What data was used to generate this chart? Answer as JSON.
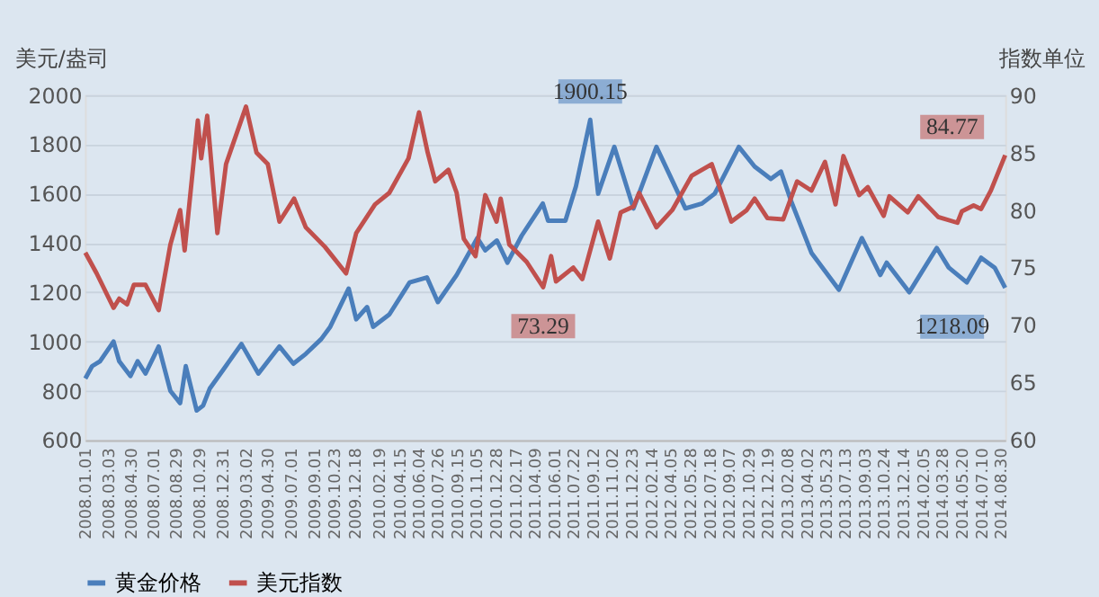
{
  "chart_data": {
    "type": "line",
    "ylabel": "美元/盎司",
    "y2label": "指数单位",
    "xlim": [
      "2008-01-01",
      "2014-09-12"
    ],
    "xticks": [
      {
        "value": "2008-01-01",
        "label": "2008.01.01"
      },
      {
        "value": "2008-03-03",
        "label": "2008.03.03"
      },
      {
        "value": "2008-04-30",
        "label": "2008.04.30"
      },
      {
        "value": "2008-07-01",
        "label": "2008.07.01"
      },
      {
        "value": "2008-08-29",
        "label": "2008.08.29"
      },
      {
        "value": "2008-10-29",
        "label": "2008.10.29"
      },
      {
        "value": "2008-12-31",
        "label": "2008.12.31"
      },
      {
        "value": "2009-03-02",
        "label": "2009.03.02"
      },
      {
        "value": "2009-04-30",
        "label": "2009.04.30"
      },
      {
        "value": "2009-07-01",
        "label": "2009.07.01"
      },
      {
        "value": "2009-09-01",
        "label": "2009.09.01"
      },
      {
        "value": "2009-10-23",
        "label": "2009.10.23"
      },
      {
        "value": "2009-12-18",
        "label": "2009.12.18"
      },
      {
        "value": "2010-02-19",
        "label": "2010.02.19"
      },
      {
        "value": "2010-04-15",
        "label": "2010.04.15"
      },
      {
        "value": "2010-06-04",
        "label": "2010.06.04"
      },
      {
        "value": "2010-07-26",
        "label": "2010.07.26"
      },
      {
        "value": "2010-09-15",
        "label": "2010.09.15"
      },
      {
        "value": "2010-11-05",
        "label": "2010.11.05"
      },
      {
        "value": "2010-12-28",
        "label": "2010.12.28"
      },
      {
        "value": "2011-02-17",
        "label": "2011.02.17"
      },
      {
        "value": "2011-04-09",
        "label": "2011.04.09"
      },
      {
        "value": "2011-06-01",
        "label": "2011.06.01"
      },
      {
        "value": "2011-07-22",
        "label": "2011.07.22"
      },
      {
        "value": "2011-09-12",
        "label": "2011.09.12"
      },
      {
        "value": "2011-11-02",
        "label": "2011.11.02"
      },
      {
        "value": "2011-12-23",
        "label": "2011.12.23"
      },
      {
        "value": "2012-02-14",
        "label": "2012.02.14"
      },
      {
        "value": "2012-04-05",
        "label": "2012.04.05"
      },
      {
        "value": "2012-05-28",
        "label": "2012.05.28"
      },
      {
        "value": "2012-07-18",
        "label": "2012.07.18"
      },
      {
        "value": "2012-09-07",
        "label": "2012.09.07"
      },
      {
        "value": "2012-10-29",
        "label": "2012.10.29"
      },
      {
        "value": "2012-12-19",
        "label": "2012.12.19"
      },
      {
        "value": "2013-02-08",
        "label": "2013.02.08"
      },
      {
        "value": "2013-04-02",
        "label": "2013.04.02"
      },
      {
        "value": "2013-05-23",
        "label": "2013.05.23"
      },
      {
        "value": "2013-07-13",
        "label": "2013.07.13"
      },
      {
        "value": "2013-09-03",
        "label": "2013.09.03"
      },
      {
        "value": "2013-10-24",
        "label": "2013.10.24"
      },
      {
        "value": "2013-12-14",
        "label": "2013.12.14"
      },
      {
        "value": "2014-02-05",
        "label": "2014.02.05"
      },
      {
        "value": "2014-03-28",
        "label": "2014.03.28"
      },
      {
        "value": "2014-05-20",
        "label": "2014.05.20"
      },
      {
        "value": "2014-07-10",
        "label": "2014.07.10"
      },
      {
        "value": "2014-08-30",
        "label": "2014.08.30"
      }
    ],
    "ylim": [
      600,
      2000
    ],
    "yticks": [
      600,
      800,
      1000,
      1200,
      1400,
      1600,
      1800,
      2000
    ],
    "y2lim": [
      60,
      90
    ],
    "y2ticks": [
      60,
      65,
      70,
      75,
      80,
      85,
      90
    ],
    "grid": "y",
    "legend": "bottom",
    "marker": "none",
    "line_style": "solid",
    "series": [
      {
        "name": "黄金价格",
        "color": "#4a7ebb",
        "x": [
          "2008-01-02",
          "2008-01-20",
          "2008-02-10",
          "2008-03-17",
          "2008-04-01",
          "2008-05-01",
          "2008-05-20",
          "2008-06-10",
          "2008-07-15",
          "2008-08-15",
          "2008-09-10",
          "2008-09-25",
          "2008-10-24",
          "2008-11-10",
          "2008-11-28",
          "2008-12-31",
          "2009-02-20",
          "2009-04-06",
          "2009-06-01",
          "2009-07-08",
          "2009-08-10",
          "2009-09-20",
          "2009-10-14",
          "2009-12-02",
          "2009-12-22",
          "2010-01-20",
          "2010-02-05",
          "2010-03-20",
          "2010-05-13",
          "2010-06-28",
          "2010-07-27",
          "2010-09-15",
          "2010-11-09",
          "2010-11-30",
          "2010-12-31",
          "2011-01-28",
          "2011-03-07",
          "2011-05-02",
          "2011-05-16",
          "2011-07-01",
          "2011-07-29",
          "2011-09-05",
          "2011-09-26",
          "2011-11-08",
          "2011-12-29",
          "2012-02-28",
          "2012-05-15",
          "2012-06-28",
          "2012-08-01",
          "2012-10-04",
          "2012-11-15",
          "2012-12-28",
          "2013-01-24",
          "2013-02-20",
          "2013-04-15",
          "2013-06-27",
          "2013-08-27",
          "2013-10-15",
          "2013-11-01",
          "2013-12-31",
          "2014-03-14",
          "2014-04-15",
          "2014-06-02",
          "2014-07-10",
          "2014-08-15",
          "2014-09-12"
        ],
        "values": [
          850,
          900,
          920,
          1000,
          920,
          860,
          920,
          870,
          980,
          800,
          750,
          900,
          720,
          740,
          810,
          880,
          990,
          870,
          980,
          910,
          950,
          1010,
          1060,
          1215,
          1090,
          1140,
          1060,
          1110,
          1240,
          1260,
          1160,
          1270,
          1420,
          1370,
          1410,
          1320,
          1430,
          1560,
          1490,
          1490,
          1630,
          1900.15,
          1600,
          1790,
          1540,
          1790,
          1540,
          1560,
          1600,
          1790,
          1710,
          1660,
          1690,
          1570,
          1360,
          1210,
          1420,
          1270,
          1320,
          1200,
          1380,
          1300,
          1240,
          1340,
          1300,
          1218.09
        ],
        "value_labels": [
          null,
          null,
          null,
          null,
          null,
          null,
          null,
          null,
          null,
          null,
          null,
          null,
          null,
          null,
          null,
          null,
          null,
          null,
          null,
          null,
          null,
          null,
          null,
          null,
          null,
          null,
          null,
          null,
          null,
          null,
          null,
          null,
          null,
          null,
          null,
          null,
          null,
          null,
          null,
          null,
          null,
          "1900.15",
          null,
          null,
          null,
          null,
          null,
          null,
          null,
          null,
          null,
          null,
          null,
          null,
          null,
          null,
          null,
          null,
          null,
          null,
          null,
          null,
          null,
          null,
          null,
          "1218.09"
        ]
      },
      {
        "name": "美元指数",
        "color": "#c0504d",
        "axis": "y2",
        "x": [
          "2008-01-02",
          "2008-02-01",
          "2008-03-17",
          "2008-04-01",
          "2008-04-22",
          "2008-05-10",
          "2008-06-10",
          "2008-07-15",
          "2008-08-15",
          "2008-09-10",
          "2008-09-22",
          "2008-10-27",
          "2008-11-05",
          "2008-11-21",
          "2008-12-18",
          "2009-01-10",
          "2009-03-04",
          "2009-04-01",
          "2009-05-01",
          "2009-06-01",
          "2009-07-10",
          "2009-08-10",
          "2009-09-30",
          "2009-11-25",
          "2009-12-22",
          "2010-02-10",
          "2010-03-20",
          "2010-05-10",
          "2010-06-07",
          "2010-06-30",
          "2010-07-20",
          "2010-08-24",
          "2010-09-15",
          "2010-10-04",
          "2010-11-04",
          "2010-11-30",
          "2010-12-30",
          "2011-01-10",
          "2011-02-02",
          "2011-03-20",
          "2011-05-03",
          "2011-05-24",
          "2011-06-06",
          "2011-07-22",
          "2011-08-15",
          "2011-09-26",
          "2011-10-27",
          "2011-11-25",
          "2011-12-29",
          "2012-01-13",
          "2012-02-28",
          "2012-04-10",
          "2012-06-01",
          "2012-07-24",
          "2012-09-14",
          "2012-10-25",
          "2012-11-15",
          "2012-12-19",
          "2013-01-30",
          "2013-03-08",
          "2013-04-15",
          "2013-05-21",
          "2013-06-18",
          "2013-07-09",
          "2013-08-20",
          "2013-09-12",
          "2013-10-24",
          "2013-11-08",
          "2013-12-27",
          "2014-01-24",
          "2014-03-18",
          "2014-05-08",
          "2014-05-20",
          "2014-06-20",
          "2014-07-10",
          "2014-08-05",
          "2014-09-12"
        ],
        "values": [
          76.3,
          74.5,
          71.5,
          72.3,
          71.8,
          73.5,
          73.5,
          71.3,
          77,
          80,
          76.5,
          87.8,
          84.5,
          88.2,
          78,
          84,
          89,
          85,
          84,
          79,
          81,
          78.5,
          76.8,
          74.5,
          78,
          80.5,
          81.5,
          84.5,
          88.5,
          85,
          82.5,
          83.5,
          81.5,
          77.5,
          76,
          81.3,
          79,
          81,
          77,
          75.5,
          73.29,
          76,
          73.8,
          75,
          74,
          79,
          75.8,
          79.8,
          80.3,
          81.5,
          78.5,
          80,
          83,
          84,
          79,
          80,
          81,
          79.3,
          79.2,
          82.5,
          81.7,
          84.2,
          80.5,
          84.7,
          81.3,
          82,
          79.5,
          81.2,
          79.8,
          81.2,
          79.4,
          78.9,
          79.9,
          80.4,
          80.1,
          81.7,
          84.77
        ],
        "value_labels": [
          null,
          null,
          null,
          null,
          null,
          null,
          null,
          null,
          null,
          null,
          null,
          null,
          null,
          null,
          null,
          null,
          null,
          null,
          null,
          null,
          null,
          null,
          null,
          null,
          null,
          null,
          null,
          null,
          null,
          null,
          null,
          null,
          null,
          null,
          null,
          null,
          null,
          null,
          null,
          null,
          "73.29",
          null,
          null,
          null,
          null,
          null,
          null,
          null,
          null,
          null,
          null,
          null,
          null,
          null,
          null,
          null,
          null,
          null,
          null,
          null,
          null,
          null,
          null,
          null,
          null,
          null,
          null,
          null,
          null,
          null,
          null,
          null,
          null,
          null,
          null,
          null,
          "84.77"
        ]
      }
    ]
  }
}
